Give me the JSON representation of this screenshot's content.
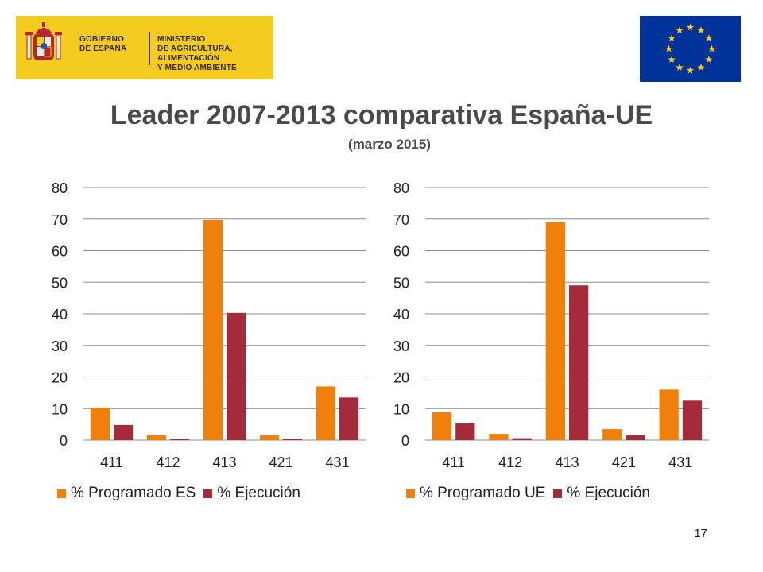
{
  "header": {
    "gov_line1": "GOBIERNO",
    "gov_line2": "DE ESPAÑA",
    "ministry_line1": "MINISTERIO",
    "ministry_line2": "DE AGRICULTURA, ALIMENTACIÓN",
    "ministry_line3": "Y MEDIO AMBIENTE"
  },
  "title": "Leader 2007-2013 comparativa España-UE",
  "subtitle": "(marzo 2015)",
  "page_number": "17",
  "colors": {
    "programado": "#f07f0b",
    "ejecucion": "#a52a3a",
    "grid": "#8c8c8c",
    "eu_blue": "#003399",
    "eu_star": "#ffcc00",
    "gov_yellow": "#f3cc1f"
  },
  "chart_data": [
    {
      "type": "bar",
      "title": "",
      "categories": [
        "411",
        "412",
        "413",
        "421",
        "431"
      ],
      "series": [
        {
          "name": "% Programado ES",
          "values": [
            10.3,
            1.5,
            69.7,
            1.5,
            17.0
          ]
        },
        {
          "name": "% Ejecución",
          "values": [
            4.8,
            0.3,
            40.3,
            0.5,
            13.5
          ]
        }
      ],
      "yticks": [
        "0",
        "10",
        "20",
        "30",
        "40",
        "50",
        "60",
        "70",
        "80"
      ],
      "ylim": [
        0,
        80
      ],
      "legend_position": "bottom"
    },
    {
      "type": "bar",
      "title": "",
      "categories": [
        "411",
        "412",
        "413",
        "421",
        "431"
      ],
      "series": [
        {
          "name": "% Programado UE",
          "values": [
            8.8,
            2.0,
            69.0,
            3.5,
            16.0
          ]
        },
        {
          "name": "% Ejecución",
          "values": [
            5.3,
            0.6,
            49.0,
            1.5,
            12.5
          ]
        }
      ],
      "yticks": [
        "0",
        "10",
        "20",
        "30",
        "40",
        "50",
        "60",
        "70",
        "80"
      ],
      "ylim": [
        0,
        80
      ],
      "legend_position": "bottom"
    }
  ]
}
